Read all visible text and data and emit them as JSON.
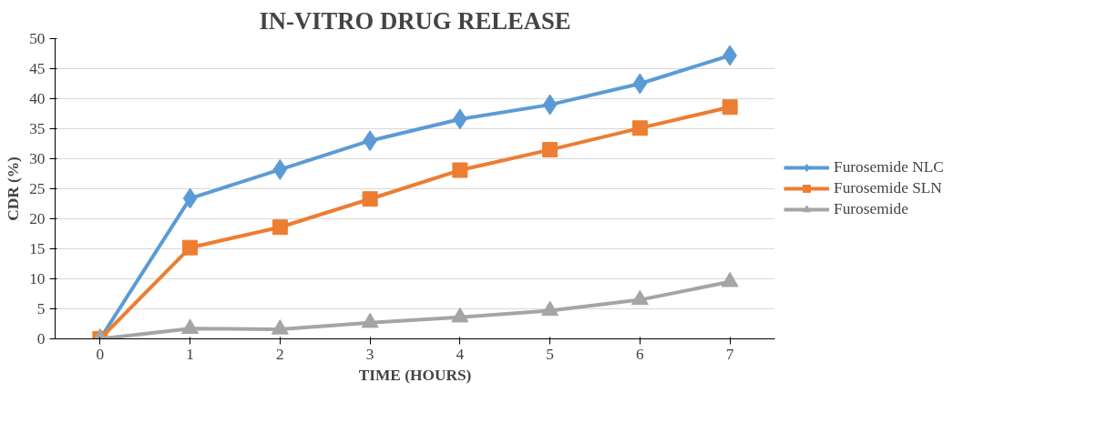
{
  "chart_data": {
    "type": "line",
    "title": "IN-VITRO DRUG RELEASE",
    "xlabel": "TIME (HOURS)",
    "ylabel": "CDR (%)",
    "categories": [
      "0",
      "1",
      "2",
      "3",
      "4",
      "5",
      "6",
      "7"
    ],
    "series": [
      {
        "name": "Furosemide NLC",
        "color": "#5b9bd5",
        "marker": "diamond",
        "values": [
          0,
          23.4,
          28.2,
          33,
          36.6,
          39,
          42.5,
          47.2
        ]
      },
      {
        "name": "Furosemide SLN",
        "color": "#ed7d31",
        "marker": "square",
        "values": [
          0,
          15.2,
          18.6,
          23.3,
          28.1,
          31.5,
          35.1,
          38.6
        ]
      },
      {
        "name": "Furosemide",
        "color": "#a5a5a5",
        "marker": "triangle",
        "values": [
          0,
          1.7,
          1.6,
          2.7,
          3.6,
          4.7,
          6.5,
          9.5
        ]
      }
    ],
    "ylim": [
      0,
      50
    ],
    "yticks": [
      0,
      5,
      10,
      15,
      20,
      25,
      30,
      35,
      40,
      45,
      50
    ],
    "grid": "y",
    "legend": "right",
    "line_style": "solid"
  }
}
